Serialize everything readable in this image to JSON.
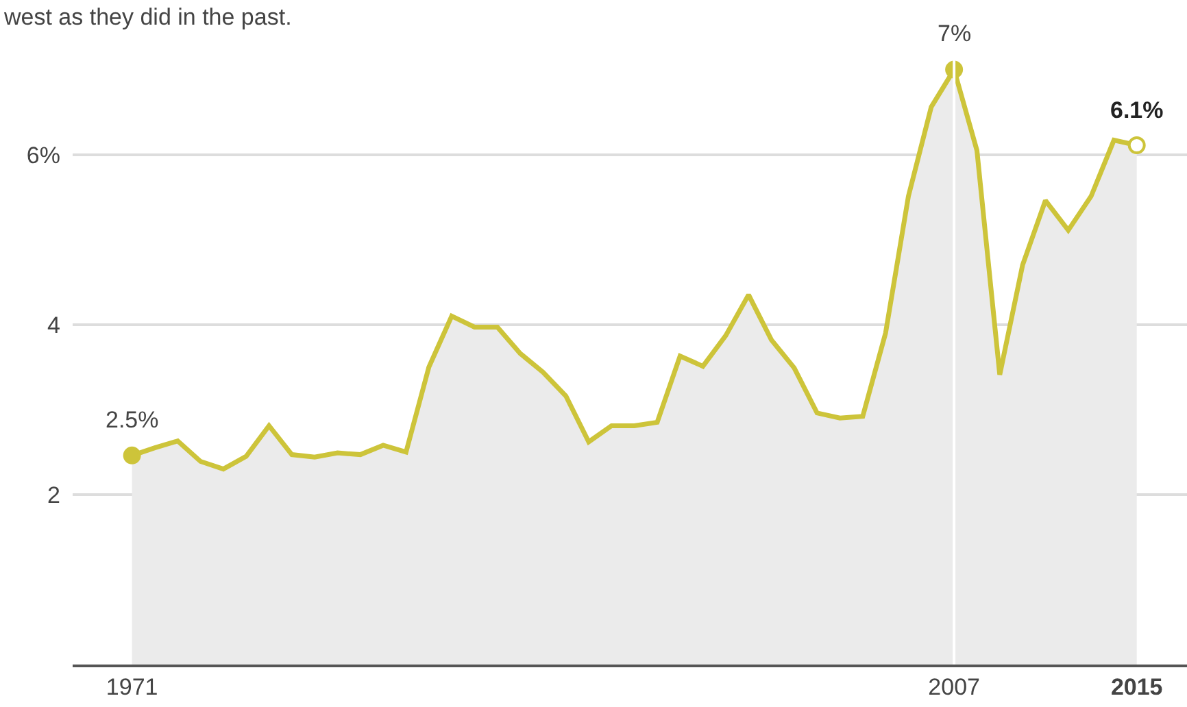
{
  "chart_data": {
    "type": "area",
    "subtitle": "west as they did in the past.",
    "x": [
      1971,
      1972,
      1973,
      1974,
      1975,
      1976,
      1977,
      1978,
      1979,
      1980,
      1981,
      1982,
      1983,
      1984,
      1985,
      1986,
      1987,
      1988,
      1989,
      1990,
      1991,
      1992,
      1993,
      1994,
      1995,
      1996,
      1997,
      1998,
      1999,
      2000,
      2001,
      2002,
      2003,
      2004,
      2005,
      2006,
      2007,
      2008,
      2009,
      2010,
      2011,
      2012,
      2013,
      2014,
      2015
    ],
    "series": [
      {
        "color": "#cdc43a",
        "values": [
          2.46,
          2.55,
          2.63,
          2.39,
          2.3,
          2.45,
          2.81,
          2.47,
          2.44,
          2.49,
          2.47,
          2.58,
          2.5,
          3.5,
          4.1,
          3.97,
          3.97,
          3.66,
          3.44,
          3.16,
          2.62,
          2.81,
          2.81,
          2.85,
          3.63,
          3.51,
          3.87,
          4.35,
          3.82,
          3.49,
          2.96,
          2.9,
          2.92,
          3.9,
          5.51,
          6.56,
          7.0,
          6.05,
          3.41,
          4.7,
          5.46,
          5.11,
          5.51,
          6.17,
          6.11
        ]
      }
    ],
    "xlim": [
      1968.4,
      2017.2
    ],
    "xticks": [
      1971,
      2007,
      2015
    ],
    "ylim": [
      0,
      7.4
    ],
    "yticks": [
      {
        "value": 2,
        "label": "2"
      },
      {
        "value": 4,
        "label": "4"
      },
      {
        "value": 6,
        "label": "6%"
      }
    ],
    "grid": "y",
    "marker": "none",
    "line_style": "solid",
    "ref_lines": [
      {
        "axis": "x",
        "value": 2007,
        "color": "#ffffff"
      }
    ],
    "annotations": [
      {
        "text": "2.5%",
        "x": 1971,
        "y": 2.46
      },
      {
        "text": "7%",
        "x": 2007,
        "y": 7.0
      },
      {
        "text": "6.1%",
        "x": 2015,
        "y": 6.11
      }
    ]
  }
}
